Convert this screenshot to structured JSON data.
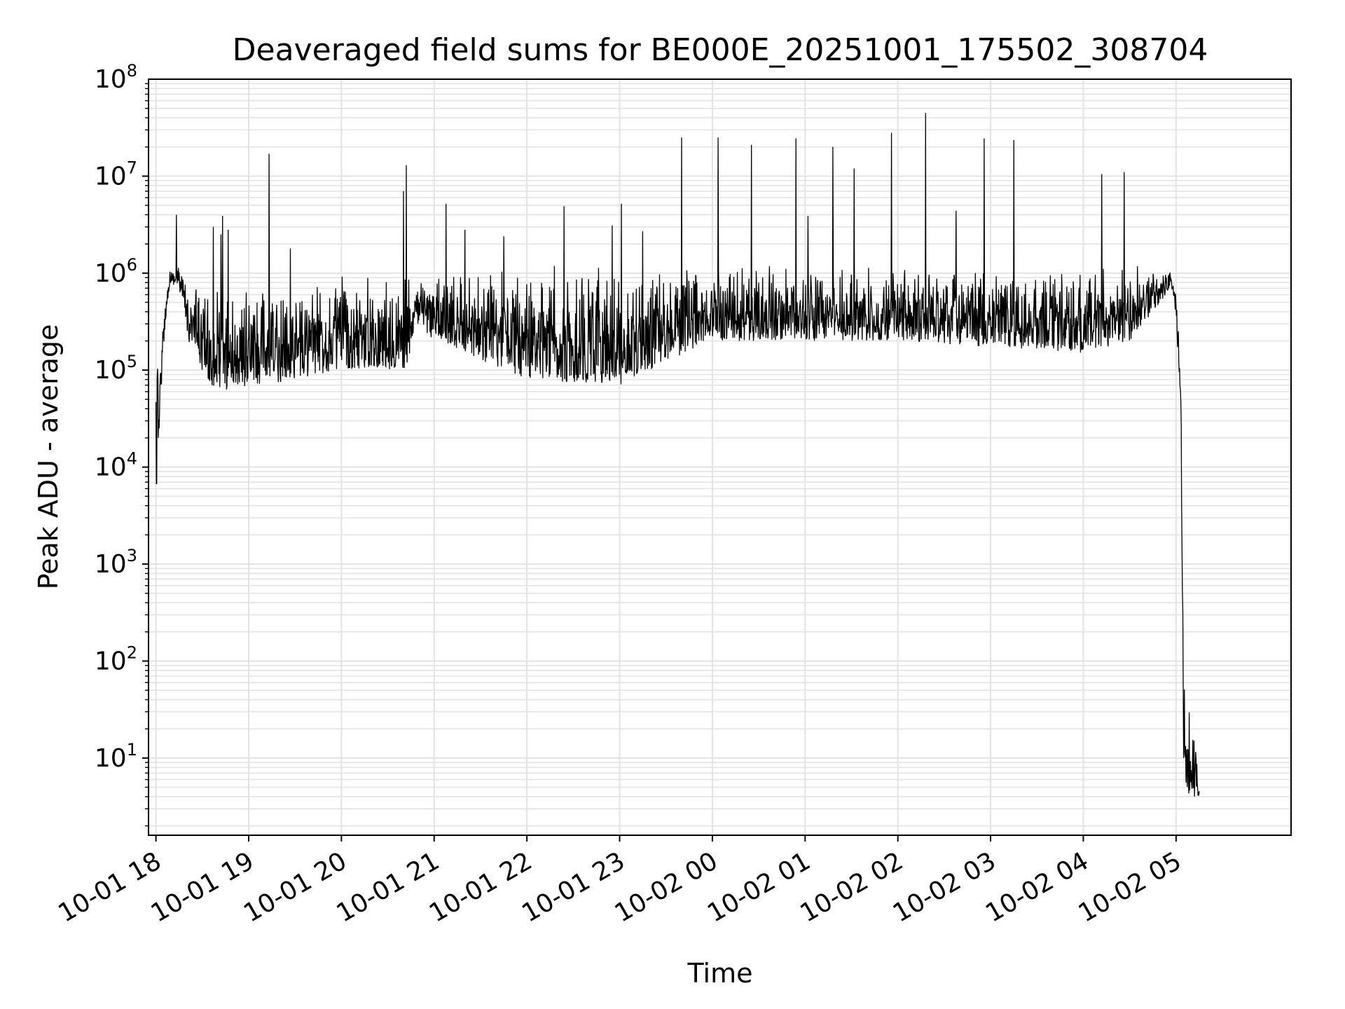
{
  "chart_data": {
    "type": "line",
    "title": "Deaveraged field sums for BE000E_20251001_175502_308704",
    "xlabel": "Time",
    "ylabel": "Peak ADU - average",
    "yscale": "log",
    "ylim": [
      1.6,
      100000000
    ],
    "x_unit": "hours after 10-01 18:00",
    "xlim": [
      -0.08,
      12.24
    ],
    "grid": true,
    "x_ticks": [
      {
        "label": "10-01 18",
        "x": 0
      },
      {
        "label": "10-01 19",
        "x": 1
      },
      {
        "label": "10-01 20",
        "x": 2
      },
      {
        "label": "10-01 21",
        "x": 3
      },
      {
        "label": "10-01 22",
        "x": 4
      },
      {
        "label": "10-01 23",
        "x": 5
      },
      {
        "label": "10-02 00",
        "x": 6
      },
      {
        "label": "10-02 01",
        "x": 7
      },
      {
        "label": "10-02 02",
        "x": 8
      },
      {
        "label": "10-02 03",
        "x": 9
      },
      {
        "label": "10-02 04",
        "x": 10
      },
      {
        "label": "10-02 05",
        "x": 11
      }
    ],
    "y_ticks": [
      {
        "base": "10",
        "exp": "1",
        "value": 10
      },
      {
        "base": "10",
        "exp": "2",
        "value": 100
      },
      {
        "base": "10",
        "exp": "3",
        "value": 1000
      },
      {
        "base": "10",
        "exp": "4",
        "value": 10000
      },
      {
        "base": "10",
        "exp": "5",
        "value": 100000
      },
      {
        "base": "10",
        "exp": "6",
        "value": 1000000
      },
      {
        "base": "10",
        "exp": "7",
        "value": 10000000
      },
      {
        "base": "10",
        "exp": "8",
        "value": 100000000
      }
    ],
    "series": [
      {
        "name": "Peak ADU - average",
        "color": "#000000",
        "envelope": [
          {
            "x": 0.0,
            "lo": 4000,
            "hi": 120000
          },
          {
            "x": 0.05,
            "lo": 50000,
            "hi": 150000
          },
          {
            "x": 0.1,
            "lo": 300000,
            "hi": 600000
          },
          {
            "x": 0.15,
            "lo": 800000,
            "hi": 1100000
          },
          {
            "x": 0.25,
            "lo": 700000,
            "hi": 1300000
          },
          {
            "x": 0.35,
            "lo": 200000,
            "hi": 900000
          },
          {
            "x": 0.6,
            "lo": 60000,
            "hi": 700000
          },
          {
            "x": 1.2,
            "lo": 70000,
            "hi": 700000
          },
          {
            "x": 2.0,
            "lo": 100000,
            "hi": 1000000
          },
          {
            "x": 2.7,
            "lo": 100000,
            "hi": 1000000
          },
          {
            "x": 2.8,
            "lo": 300000,
            "hi": 800000
          },
          {
            "x": 3.0,
            "lo": 200000,
            "hi": 1000000
          },
          {
            "x": 4.0,
            "lo": 80000,
            "hi": 1200000
          },
          {
            "x": 5.0,
            "lo": 70000,
            "hi": 1200000
          },
          {
            "x": 5.5,
            "lo": 120000,
            "hi": 1200000
          },
          {
            "x": 6.0,
            "lo": 200000,
            "hi": 1200000
          },
          {
            "x": 8.0,
            "lo": 200000,
            "hi": 1200000
          },
          {
            "x": 10.0,
            "lo": 150000,
            "hi": 1200000
          },
          {
            "x": 10.5,
            "lo": 200000,
            "hi": 1200000
          },
          {
            "x": 10.95,
            "lo": 700000,
            "hi": 1100000
          },
          {
            "x": 11.0,
            "lo": 300000,
            "hi": 900000
          },
          {
            "x": 11.05,
            "lo": 50000,
            "hi": 100000
          },
          {
            "x": 11.08,
            "lo": 4,
            "hi": 1000
          },
          {
            "x": 11.25,
            "lo": 4,
            "hi": 4.8
          }
        ],
        "spikes": [
          {
            "x": 0.22,
            "y": 4000000
          },
          {
            "x": 0.62,
            "y": 3000000
          },
          {
            "x": 0.7,
            "y": 2500000
          },
          {
            "x": 0.72,
            "y": 3900000
          },
          {
            "x": 0.78,
            "y": 2800000
          },
          {
            "x": 1.22,
            "y": 17000000
          },
          {
            "x": 1.45,
            "y": 1800000
          },
          {
            "x": 2.67,
            "y": 7000000
          },
          {
            "x": 2.7,
            "y": 13000000
          },
          {
            "x": 3.13,
            "y": 5200000
          },
          {
            "x": 3.33,
            "y": 2800000
          },
          {
            "x": 3.75,
            "y": 2400000
          },
          {
            "x": 4.4,
            "y": 4900000
          },
          {
            "x": 4.92,
            "y": 3100000
          },
          {
            "x": 5.02,
            "y": 5200000
          },
          {
            "x": 5.25,
            "y": 2700000
          },
          {
            "x": 5.67,
            "y": 25000000
          },
          {
            "x": 6.06,
            "y": 25000000
          },
          {
            "x": 6.42,
            "y": 21000000
          },
          {
            "x": 6.9,
            "y": 24500000
          },
          {
            "x": 7.03,
            "y": 3900000
          },
          {
            "x": 7.3,
            "y": 20000000
          },
          {
            "x": 7.53,
            "y": 12000000
          },
          {
            "x": 7.93,
            "y": 28000000
          },
          {
            "x": 8.3,
            "y": 45000000
          },
          {
            "x": 8.63,
            "y": 4400000
          },
          {
            "x": 8.93,
            "y": 24500000
          },
          {
            "x": 9.25,
            "y": 23500000
          },
          {
            "x": 10.2,
            "y": 10500000
          },
          {
            "x": 10.44,
            "y": 11000000
          }
        ]
      }
    ]
  }
}
